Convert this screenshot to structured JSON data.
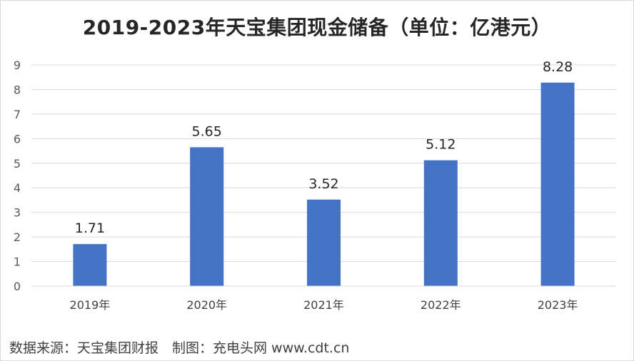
{
  "chart_data": {
    "type": "bar",
    "title": "2019-2023年天宝集团现金储备（单位：亿港元）",
    "categories": [
      "2019年",
      "2020年",
      "2021年",
      "2022年",
      "2023年"
    ],
    "values": [
      1.71,
      5.65,
      3.52,
      5.12,
      8.28
    ],
    "data_labels": [
      "1.71",
      "5.65",
      "3.52",
      "5.12",
      "8.28"
    ],
    "yticks": [
      "0",
      "1",
      "2",
      "3",
      "4",
      "5",
      "6",
      "7",
      "8",
      "9"
    ],
    "ylim": [
      0,
      9
    ],
    "grid": true,
    "legend": "none",
    "bar_color": "#4472c4",
    "grid_color": "#d9d9d9"
  },
  "footer": {
    "source": "数据来源：天宝集团财报　制图：充电头网 www.cdt.cn"
  }
}
